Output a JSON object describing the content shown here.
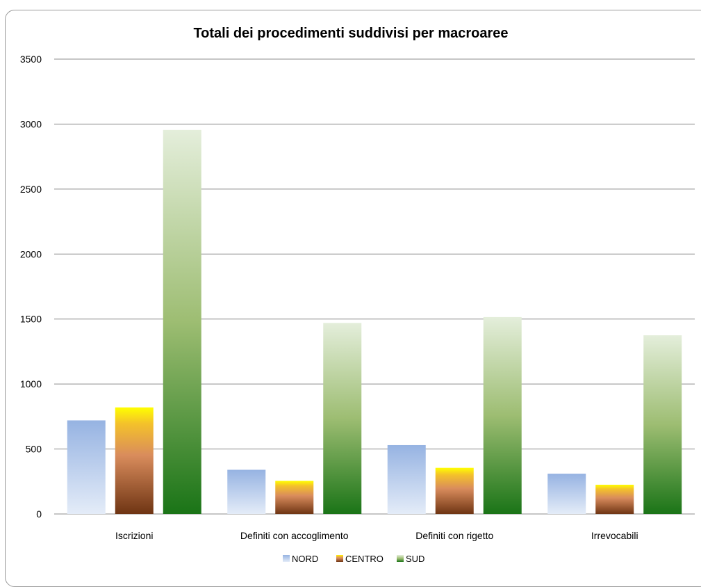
{
  "chart_data": {
    "type": "bar",
    "title": "Totali dei procedimenti suddivisi per macroaree",
    "categories": [
      "Iscrizioni",
      "Definiti con accoglimento",
      "Definiti con rigetto",
      "Irrevocabili"
    ],
    "series": [
      {
        "name": "NORD",
        "values": [
          720,
          340,
          530,
          310
        ]
      },
      {
        "name": "CENTRO",
        "values": [
          820,
          255,
          355,
          225
        ]
      },
      {
        "name": "SUD",
        "values": [
          2955,
          1470,
          1515,
          1375
        ]
      }
    ],
    "ylim": [
      0,
      3500
    ],
    "yticks": [
      "0",
      "500",
      "1000",
      "1500",
      "2000",
      "2500",
      "3000",
      "3500"
    ],
    "grid": true,
    "legend_position": "bottom",
    "colors": {
      "NORD": [
        "#e4ecf8",
        "#96b3e2"
      ],
      "CENTRO": [
        "#6e3413",
        "#d98c5c",
        "#ffff00"
      ],
      "SUD": [
        "#1a7417",
        "#9dbd72",
        "#e4eedb"
      ]
    }
  }
}
